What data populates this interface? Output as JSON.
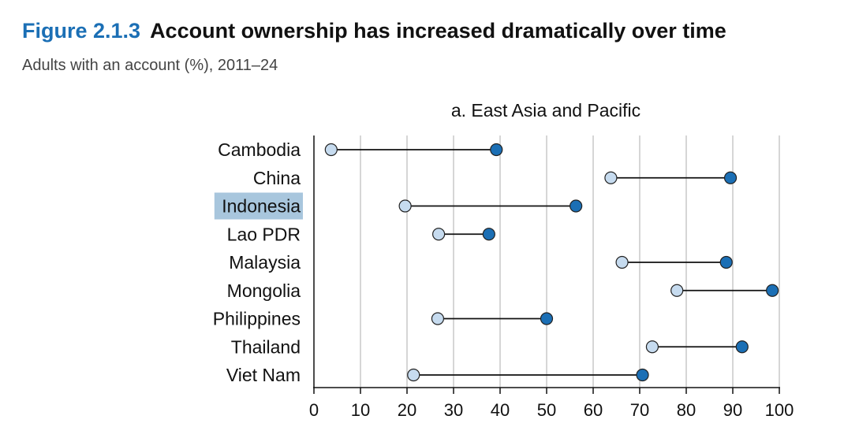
{
  "figure": {
    "number": "Figure 2.1.3",
    "title": "Account ownership has increased dramatically over time",
    "subtitle": "Adults with an account (%), 2011–24"
  },
  "colors": {
    "start_fill": "#c6dbef",
    "end_fill": "#1b6fb5",
    "line": "#111111",
    "grid": "#c8c8c8",
    "highlight_bg": "#a8c6dd",
    "title_accent": "#1b6fb5"
  },
  "chart_data": {
    "type": "dumbbell",
    "title": "a. East Asia and Pacific",
    "categories": [
      "Cambodia",
      "China",
      "Indonesia",
      "Lao PDR",
      "Malaysia",
      "Mongolia",
      "Philippines",
      "Thailand",
      "Viet Nam"
    ],
    "highlighted_category": "Indonesia",
    "series": [
      {
        "values": [
          3.7,
          63.8,
          19.6,
          26.8,
          66.2,
          78.0,
          26.6,
          72.7,
          21.4
        ]
      },
      {
        "values": [
          39.2,
          89.5,
          56.3,
          37.6,
          88.6,
          98.5,
          50.0,
          92.0,
          70.6
        ]
      }
    ],
    "xlim": [
      0,
      100
    ],
    "xticks": [
      0,
      10,
      20,
      30,
      40,
      50,
      60,
      70,
      80,
      90,
      100
    ],
    "grid": true
  }
}
